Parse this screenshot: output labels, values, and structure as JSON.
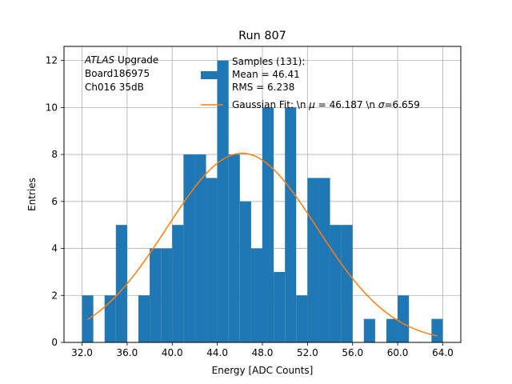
{
  "chart_data": {
    "type": "bar",
    "title": "Run 807",
    "xlabel": "Energy [ADC Counts]",
    "ylabel": "Entries",
    "xlim": [
      30.4,
      65.6
    ],
    "ylim": [
      0,
      12.6
    ],
    "xticks": [
      32,
      36,
      40,
      44,
      48,
      52,
      56,
      60,
      64
    ],
    "xtick_labels": [
      "32.0",
      "36.0",
      "40.0",
      "44.0",
      "48.0",
      "52.0",
      "56.0",
      "60.0",
      "64.0"
    ],
    "yticks": [
      0,
      2,
      4,
      6,
      8,
      10,
      12
    ],
    "ytick_labels": [
      "0",
      "2",
      "4",
      "6",
      "8",
      "10",
      "12"
    ],
    "grid": true,
    "bar_color": "#1f77b4",
    "fit_color": "#ff7f0e",
    "histogram": {
      "bin_start": 32.0,
      "bin_width": 1.0,
      "counts": [
        2,
        0,
        2,
        5,
        0,
        2,
        4,
        4,
        5,
        8,
        8,
        7,
        12,
        8,
        6,
        4,
        10,
        3,
        10,
        2,
        7,
        7,
        5,
        5,
        0,
        1,
        0,
        1,
        2,
        0,
        0,
        1
      ]
    },
    "fit": {
      "mu": 46.187,
      "sigma": 6.659,
      "amplitude": 8.05,
      "x_range": [
        32.5,
        63.5
      ]
    },
    "annotation": {
      "italic_part": "ATLAS",
      "line1_rest": " Upgrade",
      "line2": " Board186975",
      "line3": " Ch016 35dB"
    },
    "legend": {
      "position": "top-right",
      "entries": [
        {
          "type": "bar",
          "lines": [
            "Samples (131):",
            " Mean = 46.41",
            " RMS = 6.238"
          ]
        },
        {
          "type": "line",
          "prefix": "Gaussian Fit: \\n ",
          "mu_symbol": "μ",
          "mu_part": " = 46.187 \\n ",
          "sigma_symbol": "σ",
          "sigma_part": "=6.659"
        }
      ]
    }
  }
}
